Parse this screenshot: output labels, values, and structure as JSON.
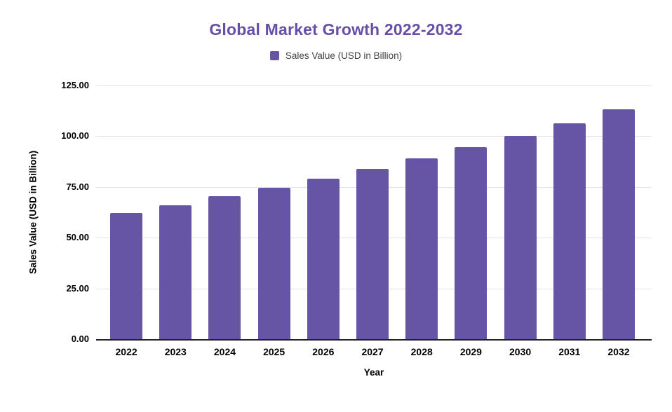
{
  "chart_data": {
    "type": "bar",
    "title": "Global Market Growth 2022-2032",
    "xlabel": "Year",
    "ylabel": "Sales Value (USD in Billion)",
    "categories": [
      "2022",
      "2023",
      "2024",
      "2025",
      "2026",
      "2027",
      "2028",
      "2029",
      "2030",
      "2031",
      "2032"
    ],
    "series": [
      {
        "name": "Sales Value (USD in Billion)",
        "values": [
          62.2,
          66.1,
          70.4,
          74.6,
          79.1,
          83.9,
          89.2,
          94.6,
          100.2,
          106.2,
          113.2
        ]
      }
    ],
    "ylim": [
      0,
      125
    ],
    "yticks": [
      {
        "value": 0,
        "label": "0.00"
      },
      {
        "value": 25,
        "label": "25.00"
      },
      {
        "value": 50,
        "label": "50.00"
      },
      {
        "value": 75,
        "label": "75.00"
      },
      {
        "value": 100,
        "label": "100.00"
      },
      {
        "value": 125,
        "label": "125.00"
      }
    ],
    "grid": "horizontal",
    "legend_position": "top",
    "legend": {
      "entries": [
        {
          "label": "Sales Value (USD in Billion)",
          "color": "#6654a5"
        }
      ]
    },
    "colors": {
      "bar": "#6654a5",
      "title": "#674ea7",
      "gridline": "#e3e3e3",
      "axis_baseline": "#212121",
      "axis_text": "#000000",
      "legend_text": "#424242",
      "background": "#ffffff"
    }
  }
}
